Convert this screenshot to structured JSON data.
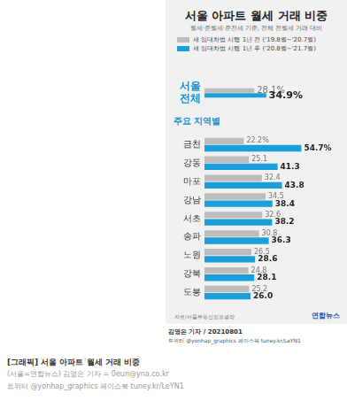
{
  "chart_data": {
    "type": "bar",
    "orientation": "horizontal",
    "title": "서울 아파트 월세 거래 비중",
    "subtitle": "월세·준월세·준전세 기준, 전체 전월세 거래 대비",
    "annotations": [
      "주요 지역별"
    ],
    "source": "자료/서울부동산정보광장",
    "categories": [
      "서울 전체",
      "금천",
      "강동",
      "마포",
      "강남",
      "서초",
      "송파",
      "노원",
      "강북",
      "도봉"
    ],
    "series": [
      {
        "name": "새 임대차법 시행 1년 전 ('19.8월~'20.7월)",
        "color": "#bdbdbd",
        "values": [
          28.1,
          22.2,
          25.1,
          32.4,
          34.5,
          32.6,
          30.8,
          26.5,
          24.8,
          25.2
        ],
        "value_labels": [
          "28.1%",
          "22.2%",
          "25.1",
          "32.4",
          "34.5",
          "32.6",
          "30.8",
          "26.5",
          "24.8",
          "25.2"
        ]
      },
      {
        "name": "새 임대차법 시행 1년 후 ('20.8월~'21.7월)",
        "color": "#1a9fd8",
        "values": [
          34.9,
          54.7,
          41.3,
          43.8,
          38.4,
          38.2,
          36.3,
          28.6,
          28.1,
          26.0
        ],
        "value_labels": [
          "34.9%",
          "54.7%",
          "41.3",
          "43.8",
          "38.4",
          "38.2",
          "36.3",
          "28.6",
          "28.1",
          "26.0"
        ]
      }
    ],
    "xlim": [
      0,
      60
    ],
    "grid": false,
    "legend": "top",
    "data_labels": true,
    "tick_labels": "y"
  },
  "footer": {
    "brand": "연합뉴스",
    "byline": "김영은 기자 / 20210801",
    "social": "트위터 @yonhap_graphics 페이스북 tuney.kr/LeYN1",
    "caption": [
      "[그래픽] 서울 아파트 월세 거래 비중",
      "(서울=연합뉴스) 김영은 기자 = 0eun@yna.co.kr",
      "트위터 @yonhap_graphics 페이스북 tuney.kr/LeYN1"
    ]
  }
}
